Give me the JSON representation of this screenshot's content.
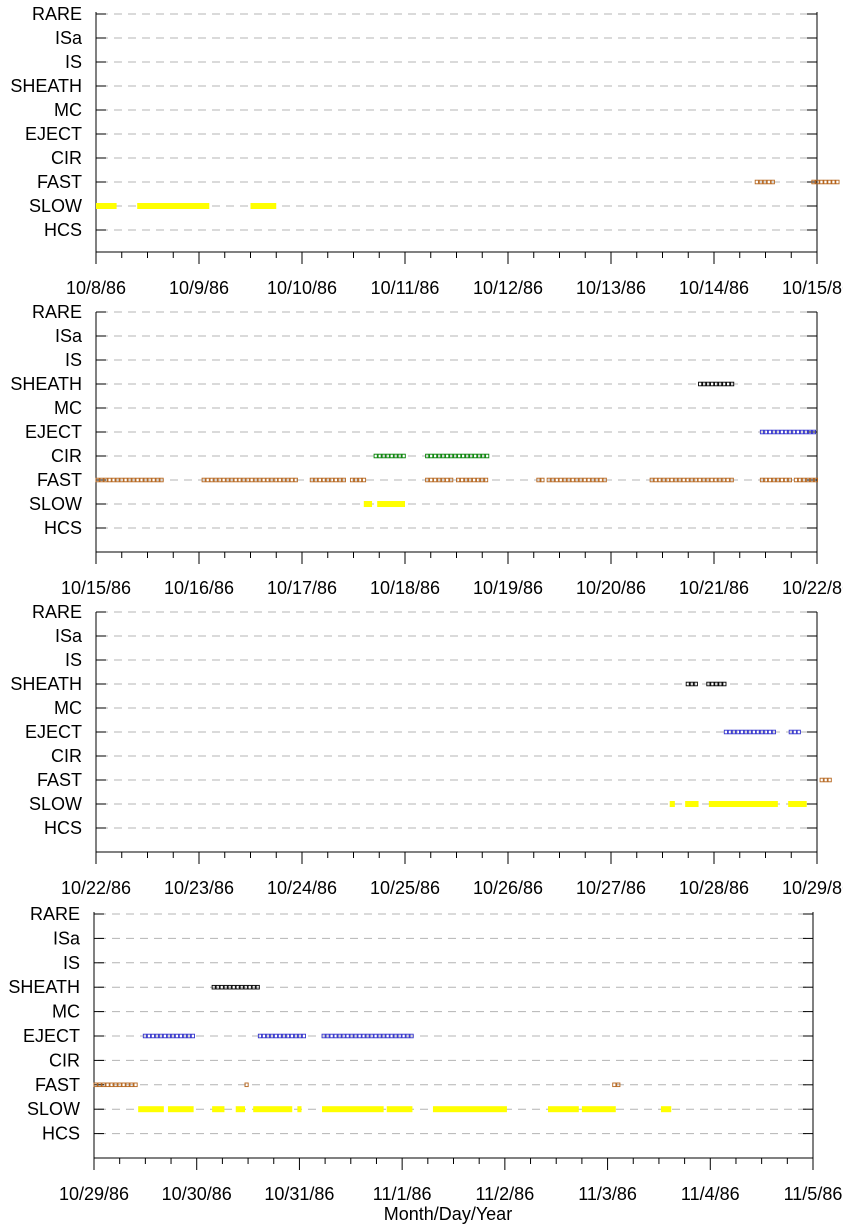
{
  "chart_data": {
    "type": "timeline",
    "xlabel": "Month/Day/Year",
    "categories": [
      "RARE",
      "ISa",
      "IS",
      "SHEATH",
      "MC",
      "EJECT",
      "CIR",
      "FAST",
      "SLOW",
      "HCS"
    ],
    "colors": {
      "FAST": "#b5651d",
      "SLOW": "#ffff00",
      "CIR": "#008000",
      "EJECT": "#3333cc",
      "SHEATH": "#000000"
    },
    "panels": [
      {
        "tick_labels": [
          "10/8/86",
          "10/9/86",
          "10/10/86",
          "10/11/86",
          "10/12/86",
          "10/13/86",
          "10/14/86",
          "10/15/86"
        ],
        "segments": [
          {
            "cat": "SLOW",
            "start": 0.0,
            "end": 0.2
          },
          {
            "cat": "SLOW",
            "start": 0.4,
            "end": 1.1
          },
          {
            "cat": "SLOW",
            "start": 1.5,
            "end": 1.75
          },
          {
            "cat": "FAST",
            "start": 6.4,
            "end": 6.6
          },
          {
            "cat": "FAST",
            "start": 6.95,
            "end": 7.2
          }
        ]
      },
      {
        "tick_labels": [
          "10/15/86",
          "10/16/86",
          "10/17/86",
          "10/18/86",
          "10/19/86",
          "10/20/86",
          "10/21/86",
          "10/22/86"
        ],
        "segments": [
          {
            "cat": "SHEATH",
            "start": 5.85,
            "end": 6.2
          },
          {
            "cat": "EJECT",
            "start": 6.45,
            "end": 7.0
          },
          {
            "cat": "CIR",
            "start": 2.7,
            "end": 3.0
          },
          {
            "cat": "CIR",
            "start": 3.2,
            "end": 3.8
          },
          {
            "cat": "FAST",
            "start": 0.0,
            "end": 0.65
          },
          {
            "cat": "FAST",
            "start": 1.03,
            "end": 1.7
          },
          {
            "cat": "FAST",
            "start": 1.73,
            "end": 1.95
          },
          {
            "cat": "FAST",
            "start": 2.08,
            "end": 2.42
          },
          {
            "cat": "FAST",
            "start": 2.47,
            "end": 2.62
          },
          {
            "cat": "FAST",
            "start": 3.2,
            "end": 3.45
          },
          {
            "cat": "FAST",
            "start": 3.5,
            "end": 3.82
          },
          {
            "cat": "FAST",
            "start": 4.28,
            "end": 4.33
          },
          {
            "cat": "FAST",
            "start": 4.38,
            "end": 4.95
          },
          {
            "cat": "FAST",
            "start": 5.38,
            "end": 6.2
          },
          {
            "cat": "FAST",
            "start": 6.45,
            "end": 6.75
          },
          {
            "cat": "FAST",
            "start": 6.78,
            "end": 7.0
          },
          {
            "cat": "SLOW",
            "start": 2.6,
            "end": 2.68
          },
          {
            "cat": "SLOW",
            "start": 2.73,
            "end": 3.0
          }
        ]
      },
      {
        "tick_labels": [
          "10/22/86",
          "10/23/86",
          "10/24/86",
          "10/25/86",
          "10/26/86",
          "10/27/86",
          "10/28/86",
          "10/29/86"
        ],
        "segments": [
          {
            "cat": "SHEATH",
            "start": 5.73,
            "end": 5.85
          },
          {
            "cat": "SHEATH",
            "start": 5.93,
            "end": 6.1
          },
          {
            "cat": "EJECT",
            "start": 6.1,
            "end": 6.6
          },
          {
            "cat": "EJECT",
            "start": 6.73,
            "end": 6.82
          },
          {
            "cat": "FAST",
            "start": 7.03,
            "end": 7.15
          },
          {
            "cat": "SLOW",
            "start": 5.57,
            "end": 5.62
          },
          {
            "cat": "SLOW",
            "start": 5.72,
            "end": 5.85
          },
          {
            "cat": "SLOW",
            "start": 5.95,
            "end": 6.62
          },
          {
            "cat": "SLOW",
            "start": 6.72,
            "end": 6.9
          }
        ]
      },
      {
        "tick_labels": [
          "10/29/86",
          "10/30/86",
          "10/31/86",
          "11/1/86",
          "11/2/86",
          "11/3/86",
          "11/4/86",
          "11/5/86"
        ],
        "segments": [
          {
            "cat": "SHEATH",
            "start": 1.15,
            "end": 1.6
          },
          {
            "cat": "EJECT",
            "start": 0.48,
            "end": 0.97
          },
          {
            "cat": "EJECT",
            "start": 1.6,
            "end": 2.05
          },
          {
            "cat": "EJECT",
            "start": 2.22,
            "end": 3.1
          },
          {
            "cat": "FAST",
            "start": 0.0,
            "end": 0.43
          },
          {
            "cat": "FAST",
            "start": 1.47,
            "end": 1.51
          },
          {
            "cat": "FAST",
            "start": 5.05,
            "end": 5.13
          },
          {
            "cat": "SLOW",
            "start": 0.43,
            "end": 0.68
          },
          {
            "cat": "SLOW",
            "start": 0.72,
            "end": 0.97
          },
          {
            "cat": "SLOW",
            "start": 1.15,
            "end": 1.27
          },
          {
            "cat": "SLOW",
            "start": 1.38,
            "end": 1.47
          },
          {
            "cat": "SLOW",
            "start": 1.55,
            "end": 1.93
          },
          {
            "cat": "SLOW",
            "start": 1.98,
            "end": 2.02
          },
          {
            "cat": "SLOW",
            "start": 2.22,
            "end": 2.82
          },
          {
            "cat": "SLOW",
            "start": 2.85,
            "end": 3.1
          },
          {
            "cat": "SLOW",
            "start": 3.3,
            "end": 4.02
          },
          {
            "cat": "SLOW",
            "start": 4.42,
            "end": 4.72
          },
          {
            "cat": "SLOW",
            "start": 4.75,
            "end": 5.08
          },
          {
            "cat": "SLOW",
            "start": 5.52,
            "end": 5.62
          }
        ]
      }
    ]
  }
}
